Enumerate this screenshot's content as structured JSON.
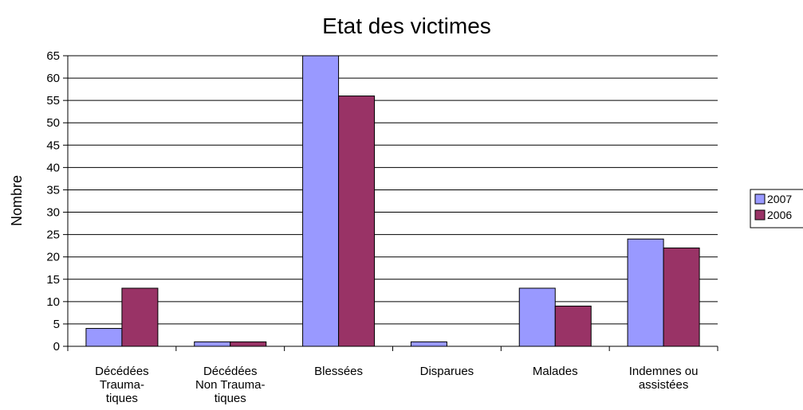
{
  "chart_data": {
    "type": "bar",
    "title": "Etat des victimes",
    "xlabel": "",
    "ylabel": "Nombre",
    "ylim": [
      0,
      65
    ],
    "ytick_step": 5,
    "grid": true,
    "legend_position": "right",
    "categories": [
      [
        "Décédées",
        "Trauma-",
        "tiques"
      ],
      [
        "Décédées",
        "Non Trauma-",
        "tiques"
      ],
      [
        "Blessées"
      ],
      [
        "Disparues"
      ],
      [
        "Malades"
      ],
      [
        "Indemnes ou",
        "assistées"
      ]
    ],
    "series": [
      {
        "name": "2007",
        "color": "#9999ff",
        "values": [
          4,
          1,
          65,
          1,
          13,
          24
        ]
      },
      {
        "name": "2006",
        "color": "#993366",
        "values": [
          13,
          1,
          56,
          0,
          9,
          22
        ]
      }
    ]
  }
}
